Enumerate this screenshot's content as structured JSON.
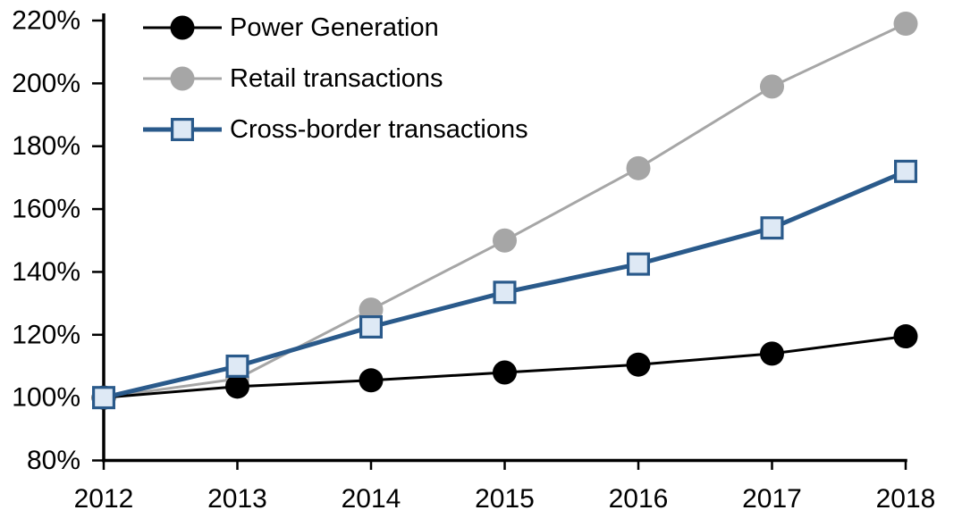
{
  "page": {
    "background_color": "#ffffff",
    "text_color": "#000000"
  },
  "chart_data": {
    "type": "line",
    "title": "",
    "x": [
      2012,
      2013,
      2014,
      2015,
      2016,
      2017,
      2018
    ],
    "x_tick_labels": [
      "2012",
      "2013",
      "2014",
      "2015",
      "2016",
      "2017",
      "2018"
    ],
    "y_tick_labels": [
      "80%",
      "100%",
      "120%",
      "140%",
      "160%",
      "180%",
      "200%",
      "220%"
    ],
    "ylim": [
      80,
      220
    ],
    "y_step": 20,
    "grid": false,
    "legend_position": "top-left-inside",
    "axis_color": "#000000",
    "series": [
      {
        "name": "Power Generation",
        "values": [
          100,
          103.5,
          105.5,
          108,
          110.5,
          114,
          119.5
        ],
        "color": "#000000",
        "marker": "circle",
        "marker_fill": "#000000",
        "line_width": 3
      },
      {
        "name": "Retail transactions",
        "values": [
          100,
          106,
          128,
          150,
          173,
          199,
          219
        ],
        "color": "#A6A6A6",
        "marker": "circle",
        "marker_fill": "#A6A6A6",
        "line_width": 3
      },
      {
        "name": "Cross-border transactions",
        "values": [
          100,
          110,
          122.5,
          133.5,
          142.5,
          154,
          172
        ],
        "color": "#2A5A8B",
        "marker": "square",
        "marker_fill": "#DEE9F5",
        "line_width": 5
      }
    ]
  }
}
